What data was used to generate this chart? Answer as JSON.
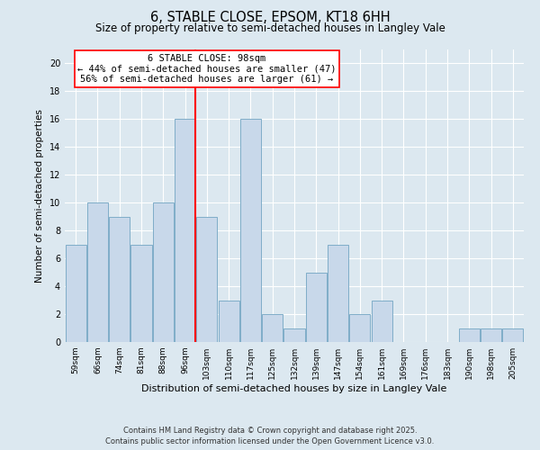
{
  "title": "6, STABLE CLOSE, EPSOM, KT18 6HH",
  "subtitle": "Size of property relative to semi-detached houses in Langley Vale",
  "xlabel": "Distribution of semi-detached houses by size in Langley Vale",
  "ylabel": "Number of semi-detached properties",
  "categories": [
    "59sqm",
    "66sqm",
    "74sqm",
    "81sqm",
    "88sqm",
    "96sqm",
    "103sqm",
    "110sqm",
    "117sqm",
    "125sqm",
    "132sqm",
    "139sqm",
    "147sqm",
    "154sqm",
    "161sqm",
    "169sqm",
    "176sqm",
    "183sqm",
    "190sqm",
    "198sqm",
    "205sqm"
  ],
  "values": [
    7,
    10,
    9,
    7,
    10,
    16,
    9,
    3,
    16,
    2,
    1,
    5,
    7,
    2,
    3,
    0,
    0,
    0,
    1,
    1,
    1
  ],
  "bar_color": "#c8d8ea",
  "bar_edge_color": "#7fadc8",
  "redline_index": 5,
  "annotation_line1": "6 STABLE CLOSE: 98sqm",
  "annotation_line2": "← 44% of semi-detached houses are smaller (47)",
  "annotation_line3": "56% of semi-detached houses are larger (61) →",
  "ylim": [
    0,
    21
  ],
  "yticks": [
    0,
    2,
    4,
    6,
    8,
    10,
    12,
    14,
    16,
    18,
    20
  ],
  "background_color": "#dce8f0",
  "plot_background_color": "#dce8f0",
  "footer_line1": "Contains HM Land Registry data © Crown copyright and database right 2025.",
  "footer_line2": "Contains public sector information licensed under the Open Government Licence v3.0.",
  "title_fontsize": 10.5,
  "subtitle_fontsize": 8.5,
  "annotation_fontsize": 7.5,
  "ylabel_fontsize": 7.5,
  "xlabel_fontsize": 8,
  "tick_fontsize": 6.5,
  "footer_fontsize": 6
}
